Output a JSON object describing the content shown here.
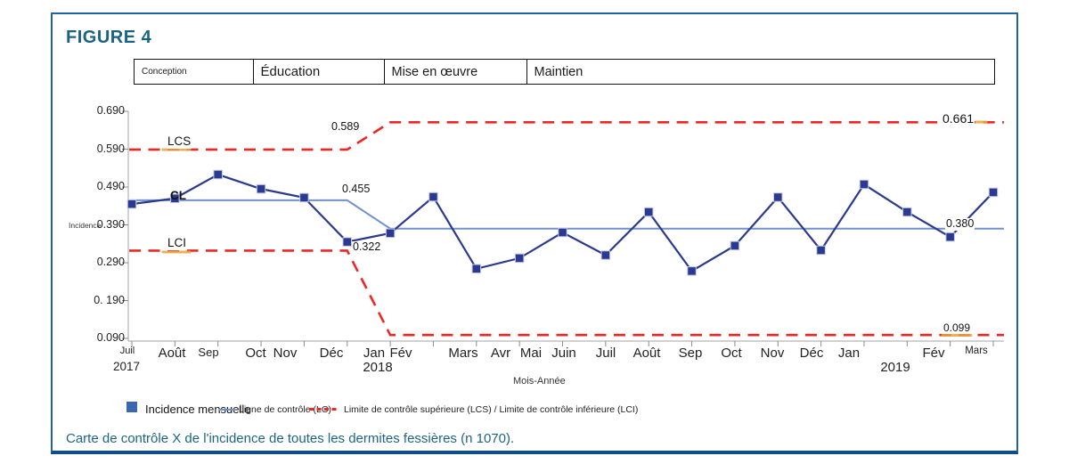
{
  "figure": {
    "title": "FIGURE 4",
    "caption": "Carte de contrôle X de l'incidence de toutes les dermites fessières (n 1070)."
  },
  "phases": [
    {
      "label": "Conception"
    },
    {
      "label": "Éducation"
    },
    {
      "label": "Mise en œuvre"
    },
    {
      "label": "Maintien"
    }
  ],
  "legend": [
    {
      "swatch": "square",
      "label": "Incidence mensuelle"
    },
    {
      "swatch": "line",
      "label": "Ligne de contrôle (LC)"
    },
    {
      "swatch": "dashed",
      "label": "Limite de contrôle supérieure (LCS) / Limite de contrôle inférieure (LCI)"
    }
  ],
  "colors": {
    "series": "#2b3a8f",
    "marker_edge": "#c4c8e8",
    "control_line": "#7191cc",
    "limit_line": "#ee2724",
    "highlight": "#e8a33d",
    "frame": "#2263a7",
    "title_text": "#1b6383",
    "axis": "#a3a3a3",
    "tick": "#8c8c8c",
    "legend_square": "#3a67ae"
  },
  "chart_data": {
    "type": "line",
    "title": "FIGURE 4",
    "xlabel": "Mois-Année",
    "ylabel": "Incidence",
    "ylim": [
      0.09,
      0.69
    ],
    "yticks": [
      0.69,
      0.59,
      0.49,
      0.39,
      0.29,
      0.19,
      0.09
    ],
    "ytick_labels": [
      "0.690",
      "0.590",
      "0.490",
      "0.390",
      "0.290",
      "0. 190",
      "0.090"
    ],
    "categories": [
      "Juil",
      "Août",
      "Sep",
      "Oct",
      "Nov",
      "Déc",
      "Jan",
      "Fév",
      "Mars",
      "Avr",
      "Mai",
      "Juin",
      "Juil",
      "Août",
      "Sep",
      "Oct",
      "Nov",
      "Déc",
      "Jan",
      "Fév",
      "Mars"
    ],
    "year_markers": [
      {
        "text": "2017",
        "month_index": 0
      },
      {
        "text": "2018",
        "month_index": 6
      },
      {
        "text": "2019",
        "month_index": 18
      }
    ],
    "series": [
      {
        "name": "Incidence mensuelle",
        "values": [
          0.445,
          0.46,
          0.523,
          0.485,
          0.462,
          0.345,
          0.368,
          0.464,
          0.274,
          0.302,
          0.37,
          0.31,
          0.424,
          0.268,
          0.335,
          0.463,
          0.323,
          0.497,
          0.424,
          0.358,
          0.476
        ]
      }
    ],
    "control_limits": {
      "CL": {
        "label": "CL",
        "before": 0.455,
        "after": 0.38
      },
      "LCS": {
        "label": "LCS",
        "before": 0.589,
        "after": 0.661
      },
      "LCI": {
        "label": "LCI",
        "before": 0.322,
        "after": 0.099
      },
      "shift_start_category": "Déc 2017",
      "shift_end_category": "Jan 2018"
    },
    "annotations": {
      "lcs_label": "LCS",
      "cl_label": "CL",
      "lci_label": "LCI",
      "lcs_before": "0.589",
      "cl_before": "0.455",
      "lci_before": "0.322",
      "lcs_after": "0.661",
      "cl_after": "0.380",
      "lci_after": "0.099"
    },
    "legend_position": "bottom",
    "grid": false
  }
}
